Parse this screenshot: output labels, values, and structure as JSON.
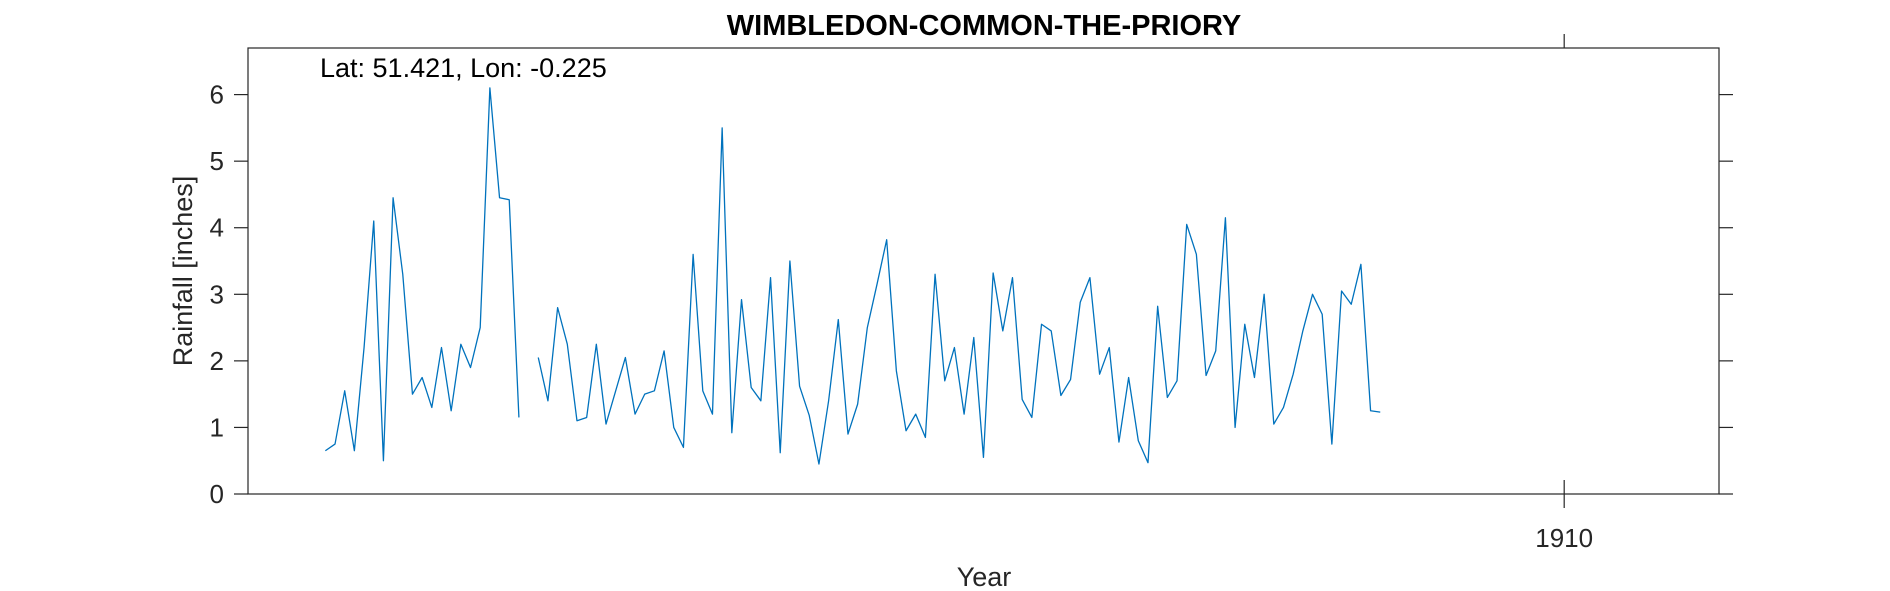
{
  "chart_data": {
    "type": "line",
    "title": "WIMBLEDON-COMMON-THE-PRIORY",
    "annotation": "Lat: 51.421, Lon: -0.225",
    "xlabel": "Year",
    "ylabel": "Rainfall [inches]",
    "ylim": [
      0,
      6.7
    ],
    "yticks": [
      0,
      1,
      2,
      3,
      4,
      5,
      6
    ],
    "xticks": [
      {
        "value": 1910,
        "label": "1910"
      }
    ],
    "grid": false,
    "legend": "none",
    "series": [
      {
        "color": "#0072BD",
        "x_start": 1899.333,
        "x_step": 0.083333,
        "values": [
          0.65,
          0.75,
          1.55,
          0.65,
          2.2,
          4.1,
          0.5,
          4.45,
          3.3,
          1.5,
          1.75,
          1.3,
          2.2,
          1.25,
          2.25,
          1.9,
          2.5,
          6.1,
          4.45,
          4.42,
          1.15,
          null,
          2.05,
          1.4,
          2.8,
          2.25,
          1.1,
          1.15,
          2.25,
          1.05,
          1.55,
          2.05,
          1.2,
          1.5,
          1.55,
          2.15,
          1.0,
          0.7,
          3.6,
          1.55,
          1.2,
          5.5,
          0.92,
          2.92,
          1.6,
          1.4,
          3.25,
          0.62,
          3.5,
          1.62,
          1.18,
          0.45,
          1.4,
          2.62,
          0.9,
          1.35,
          2.5,
          3.15,
          3.82,
          1.85,
          0.95,
          1.2,
          0.85,
          3.3,
          1.7,
          2.2,
          1.2,
          2.35,
          0.55,
          3.32,
          2.45,
          3.25,
          1.42,
          1.15,
          2.55,
          2.45,
          1.48,
          1.72,
          2.88,
          3.25,
          1.8,
          2.2,
          0.78,
          1.75,
          0.8,
          0.47,
          2.82,
          1.45,
          1.7,
          4.05,
          3.6,
          1.78,
          2.15,
          4.15,
          1.0,
          2.55,
          1.75,
          3.0,
          1.05,
          1.3,
          1.8,
          2.45,
          3.0,
          2.7,
          0.75,
          3.05,
          2.85,
          3.45,
          1.25,
          1.23
        ]
      }
    ]
  }
}
